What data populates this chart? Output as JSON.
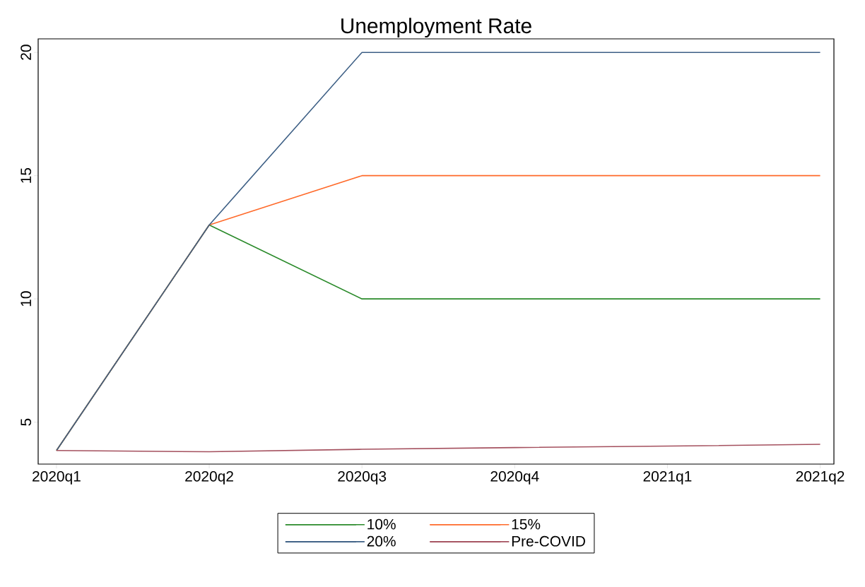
{
  "chart_data": {
    "type": "line",
    "title": "Unemployment Rate",
    "categories": [
      "2020q1",
      "2020q2",
      "2020q3",
      "2020q4",
      "2021q1",
      "2021q2"
    ],
    "series": [
      {
        "name": "10%",
        "color": "#2a8a2a",
        "values": [
          3.85,
          13,
          10,
          10,
          10,
          10
        ]
      },
      {
        "name": "15%",
        "color": "#ff6a2a",
        "values": [
          3.85,
          13,
          15,
          15,
          15,
          15
        ]
      },
      {
        "name": "20%",
        "color": "#3d5f85",
        "values": [
          3.85,
          13,
          20,
          20,
          20,
          20
        ]
      },
      {
        "name": "Pre-COVID",
        "color": "#a4505e",
        "values": [
          3.85,
          3.8,
          3.9,
          3.97,
          4.03,
          4.1
        ]
      }
    ],
    "ylim": [
      3.3,
      20.55
    ],
    "yticks": [
      5,
      10,
      15,
      20
    ],
    "grid": false,
    "legend": "bottom",
    "marker": "none",
    "line_style": "solid"
  }
}
